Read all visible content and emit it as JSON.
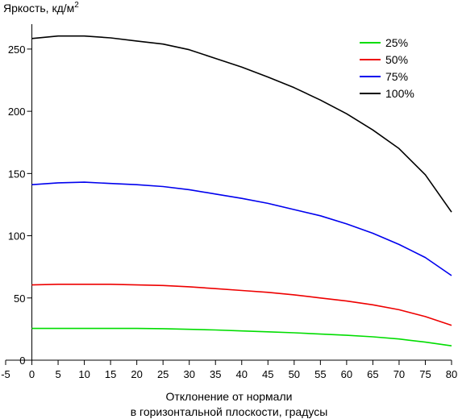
{
  "chart_data": {
    "type": "line",
    "ylabel": "Яркость, кд/м",
    "ylabel_sup": "2",
    "xlabel_line1": "Отклонение от нормали",
    "xlabel_line2": "в горизонтальной плоскости, градусы",
    "xlim": [
      -5,
      80
    ],
    "ylim": [
      0,
      270
    ],
    "xticks": [
      -5,
      0,
      5,
      10,
      15,
      20,
      25,
      30,
      35,
      40,
      45,
      50,
      55,
      60,
      65,
      70,
      75,
      80
    ],
    "yticks": [
      0,
      50,
      100,
      150,
      200,
      250
    ],
    "grid": false,
    "legend_position": "top-right",
    "x": [
      0,
      5,
      10,
      15,
      20,
      25,
      30,
      35,
      40,
      45,
      50,
      55,
      60,
      65,
      70,
      75,
      80
    ],
    "series": [
      {
        "name": "25%",
        "color": "#00dd00",
        "values": [
          25.5,
          25.5,
          25.5,
          25.5,
          25.5,
          25.3,
          24.8,
          24.3,
          23.5,
          22.8,
          22.0,
          21.0,
          20.0,
          18.8,
          17.0,
          14.5,
          11.5
        ]
      },
      {
        "name": "50%",
        "color": "#ee0000",
        "values": [
          60.5,
          61.0,
          61.0,
          61.0,
          60.5,
          60.0,
          59.0,
          57.5,
          56.0,
          54.5,
          52.5,
          50.0,
          47.5,
          44.5,
          40.5,
          35.0,
          28.0
        ]
      },
      {
        "name": "75%",
        "color": "#0000ee",
        "values": [
          141.0,
          142.5,
          143.0,
          142.0,
          141.0,
          139.5,
          137.0,
          133.5,
          130.0,
          126.0,
          121.0,
          116.0,
          109.5,
          102.0,
          93.0,
          82.5,
          68.0
        ]
      },
      {
        "name": "100%",
        "color": "#000000",
        "values": [
          258.5,
          260.5,
          260.5,
          259.0,
          256.5,
          254.0,
          249.5,
          242.5,
          235.5,
          227.5,
          219.0,
          209.0,
          198.0,
          185.0,
          170.0,
          149.0,
          119.0
        ]
      }
    ]
  }
}
